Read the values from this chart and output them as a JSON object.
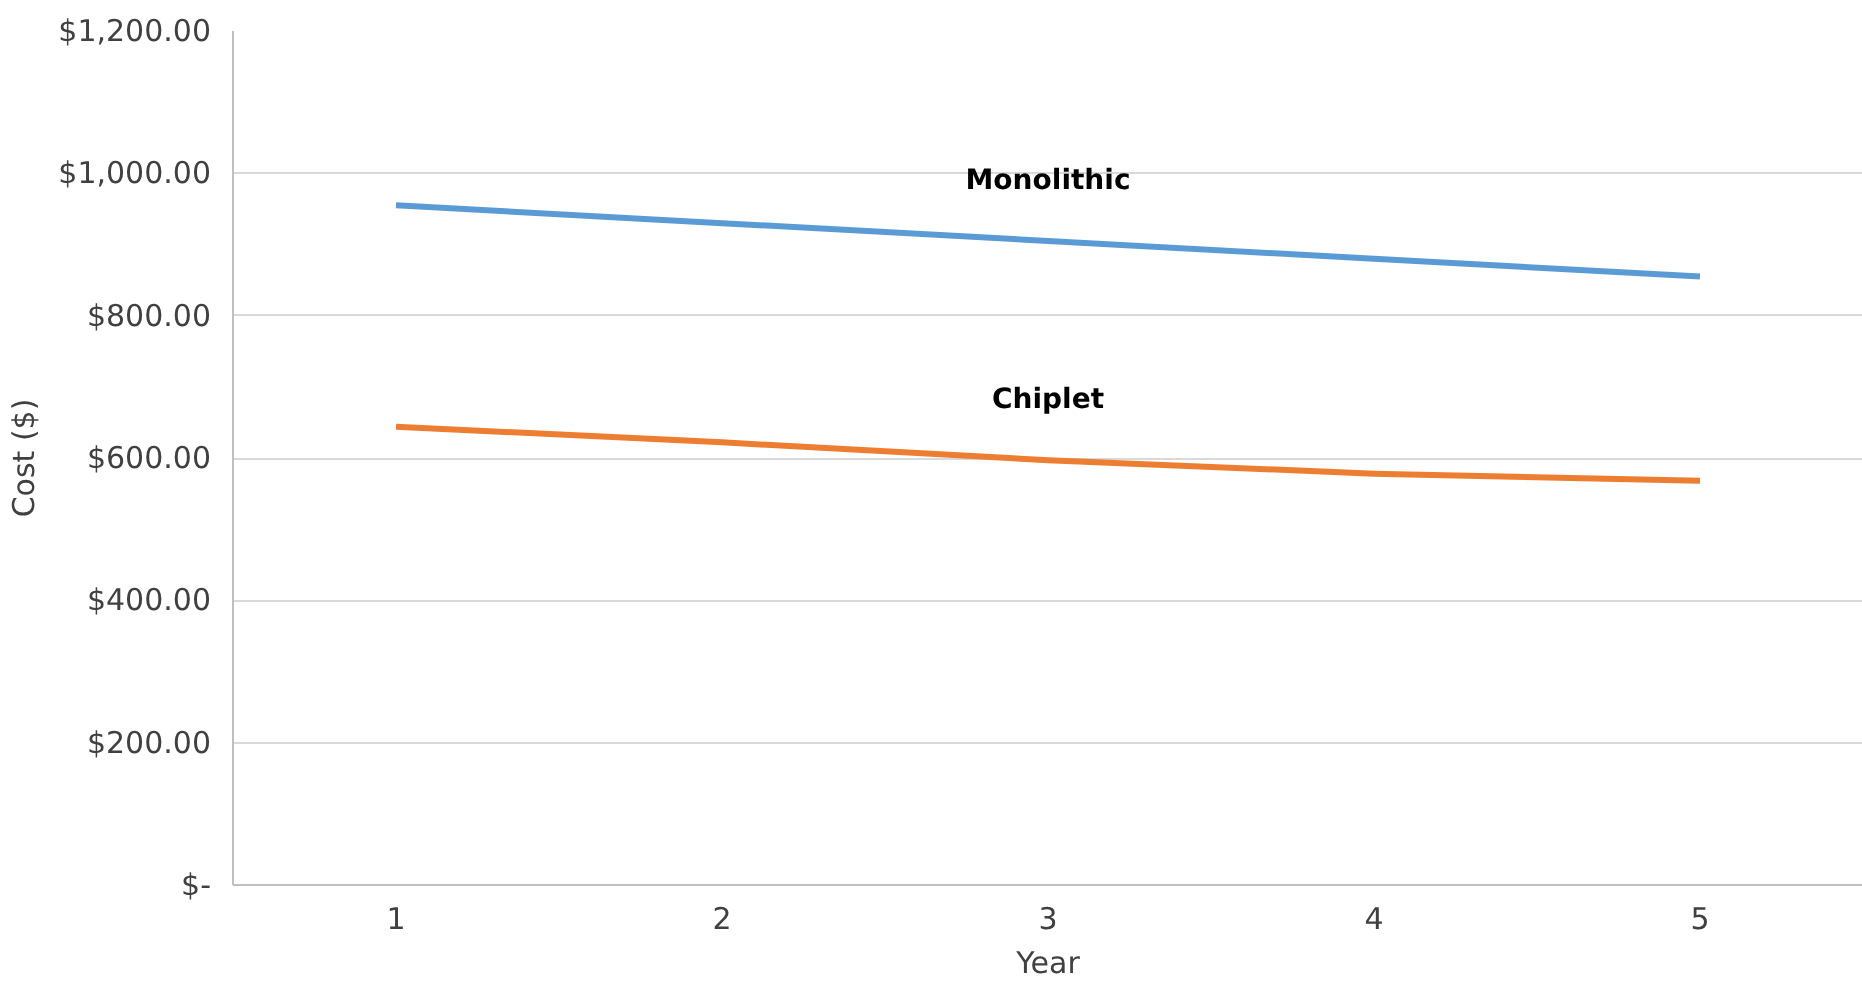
{
  "chart_data": {
    "type": "line",
    "xlabel": "Year",
    "ylabel": "Cost ($)",
    "categories": [
      "1",
      "2",
      "3",
      "4",
      "5"
    ],
    "series": [
      {
        "name": "Monolithic",
        "color": "#5b9bd5",
        "values": [
          955,
          930,
          905,
          880,
          855
        ]
      },
      {
        "name": "Chiplet",
        "color": "#ed7d31",
        "values": [
          644,
          622,
          597,
          578,
          568
        ]
      }
    ],
    "ylim": [
      0,
      1200
    ],
    "yticks": [
      {
        "value": 0,
        "label": "$-"
      },
      {
        "value": 200,
        "label": "$200.00"
      },
      {
        "value": 400,
        "label": "$400.00"
      },
      {
        "value": 600,
        "label": "$600.00"
      },
      {
        "value": 800,
        "label": "$800.00"
      },
      {
        "value": 1000,
        "label": "$1,000.00"
      },
      {
        "value": 1200,
        "label": "$1,200.00"
      }
    ],
    "grid": "y",
    "line_style": "solid"
  }
}
